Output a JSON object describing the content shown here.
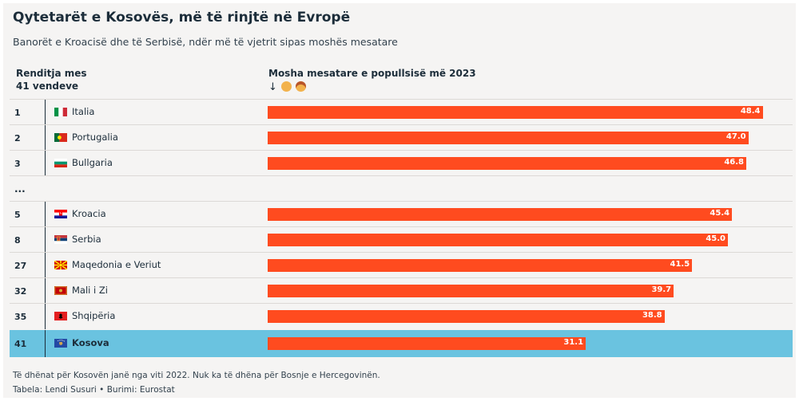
{
  "title": "Qytetarët e Kosovës, më të rinjtë në Evropë",
  "subtitle": "Banorët e Kroacisë dhe të Serbisë, ndër më të vjetrit sipas moshës mesatare",
  "header": {
    "rank_line1": "Renditja mes",
    "rank_line2": "41 vendeve",
    "age_label": "Mosha mesatare e popullsisë më 2023",
    "sort_arrow": "↓"
  },
  "ellipsis": "...",
  "footnote": "Të dhënat për Kosovën janë nga viti 2022. Nuk ka të dhëna për Bosnje e Hercegovinën.",
  "credit": "Tabela: Lendi Susuri • Burimi: Eurostat",
  "colors": {
    "bar": "#ff4b1f",
    "highlight": "#6ac3e0",
    "text": "#1c2d3a",
    "background": "#f5f4f3"
  },
  "chart_data": {
    "type": "bar",
    "orientation": "horizontal",
    "title": "Qytetarët e Kosovës, më të rinjtë në Evropë",
    "subtitle": "Banorët e Kroacisë dhe të Serbisë, ndër më të vjetrit sipas moshës mesatare",
    "value_label": "Mosha mesatare e popullsisë më 2023",
    "xlim": [
      0,
      50
    ],
    "rows": [
      {
        "rank": "1",
        "country": "Italia",
        "flag": "it",
        "value": 48.4,
        "label": "48.4",
        "highlight": false
      },
      {
        "rank": "2",
        "country": "Portugalia",
        "flag": "pt",
        "value": 47.0,
        "label": "47.0",
        "highlight": false
      },
      {
        "rank": "3",
        "country": "Bullgaria",
        "flag": "bg",
        "value": 46.8,
        "label": "46.8",
        "highlight": false
      },
      {
        "rank": "5",
        "country": "Kroacia",
        "flag": "hr",
        "value": 45.4,
        "label": "45.4",
        "highlight": false
      },
      {
        "rank": "8",
        "country": "Serbia",
        "flag": "rs",
        "value": 45.0,
        "label": "45.0",
        "highlight": false
      },
      {
        "rank": "27",
        "country": "Maqedonia e Veriut",
        "flag": "mk",
        "value": 41.5,
        "label": "41.5",
        "highlight": false
      },
      {
        "rank": "32",
        "country": "Mali i Zi",
        "flag": "me",
        "value": 39.7,
        "label": "39.7",
        "highlight": false
      },
      {
        "rank": "35",
        "country": "Shqipëria",
        "flag": "al",
        "value": 38.8,
        "label": "38.8",
        "highlight": false
      },
      {
        "rank": "41",
        "country": "Kosova",
        "flag": "xk",
        "value": 31.1,
        "label": "31.1",
        "highlight": true
      }
    ]
  }
}
